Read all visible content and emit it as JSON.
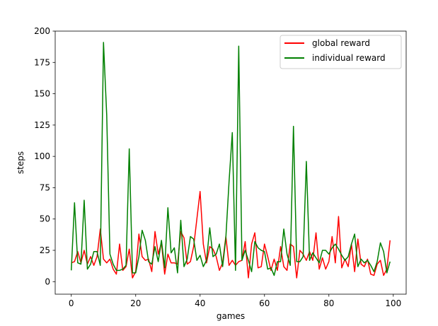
{
  "chart_data": {
    "type": "line",
    "title": "",
    "xlabel": "games",
    "ylabel": "steps",
    "xlim": [
      -5,
      104
    ],
    "ylim": [
      -10,
      200
    ],
    "xticks": [
      0,
      20,
      40,
      60,
      80,
      100
    ],
    "yticks": [
      0,
      25,
      50,
      75,
      100,
      125,
      150,
      175,
      200
    ],
    "grid": false,
    "legend_position": "top-right",
    "x": [
      0,
      1,
      2,
      3,
      4,
      5,
      6,
      7,
      8,
      9,
      10,
      11,
      12,
      13,
      14,
      15,
      16,
      17,
      18,
      19,
      20,
      21,
      22,
      23,
      24,
      25,
      26,
      27,
      28,
      29,
      30,
      31,
      32,
      33,
      34,
      35,
      36,
      37,
      38,
      39,
      40,
      41,
      42,
      43,
      44,
      45,
      46,
      47,
      48,
      49,
      50,
      51,
      52,
      53,
      54,
      55,
      56,
      57,
      58,
      59,
      60,
      61,
      62,
      63,
      64,
      65,
      66,
      67,
      68,
      69,
      70,
      71,
      72,
      73,
      74,
      75,
      76,
      77,
      78,
      79,
      80,
      81,
      82,
      83,
      84,
      85,
      86,
      87,
      88,
      89,
      90,
      91,
      92,
      93,
      94,
      95,
      96,
      97,
      98,
      99
    ],
    "series": [
      {
        "name": "global reward",
        "color": "#ff0000",
        "values": [
          15,
          16,
          24,
          15,
          25,
          14,
          20,
          13,
          20,
          42,
          18,
          15,
          18,
          10,
          6,
          30,
          9,
          12,
          26,
          3,
          8,
          38,
          20,
          17,
          18,
          8,
          40,
          22,
          31,
          6,
          22,
          15,
          15,
          14,
          40,
          35,
          14,
          16,
          28,
          50,
          72,
          30,
          15,
          28,
          26,
          20,
          9,
          15,
          36,
          13,
          17,
          13,
          16,
          17,
          32,
          3,
          30,
          39,
          11,
          12,
          30,
          20,
          9,
          18,
          9,
          28,
          12,
          9,
          30,
          28,
          3,
          25,
          22,
          17,
          24,
          17,
          39,
          10,
          19,
          10,
          16,
          36,
          15,
          52,
          11,
          18,
          12,
          30,
          8,
          34,
          14,
          12,
          18,
          6,
          5,
          14,
          17,
          5,
          10,
          33
        ]
      },
      {
        "name": "individual reward",
        "color": "#008000",
        "values": [
          9,
          63,
          15,
          14,
          65,
          10,
          14,
          24,
          24,
          13,
          191,
          133,
          22,
          14,
          9,
          9,
          10,
          13,
          106,
          7,
          7,
          20,
          41,
          33,
          16,
          14,
          28,
          16,
          33,
          11,
          59,
          23,
          27,
          7,
          49,
          12,
          18,
          36,
          34,
          17,
          21,
          12,
          17,
          43,
          20,
          22,
          30,
          12,
          35,
          80,
          119,
          9,
          188,
          17,
          25,
          17,
          8,
          32,
          27,
          25,
          24,
          10,
          11,
          5,
          16,
          16,
          42,
          22,
          13,
          124,
          16,
          16,
          20,
          96,
          17,
          23,
          19,
          15,
          25,
          25,
          22,
          27,
          30,
          26,
          21,
          17,
          20,
          30,
          38,
          12,
          18,
          15,
          17,
          13,
          8,
          16,
          31,
          24,
          7,
          16
        ]
      }
    ]
  }
}
